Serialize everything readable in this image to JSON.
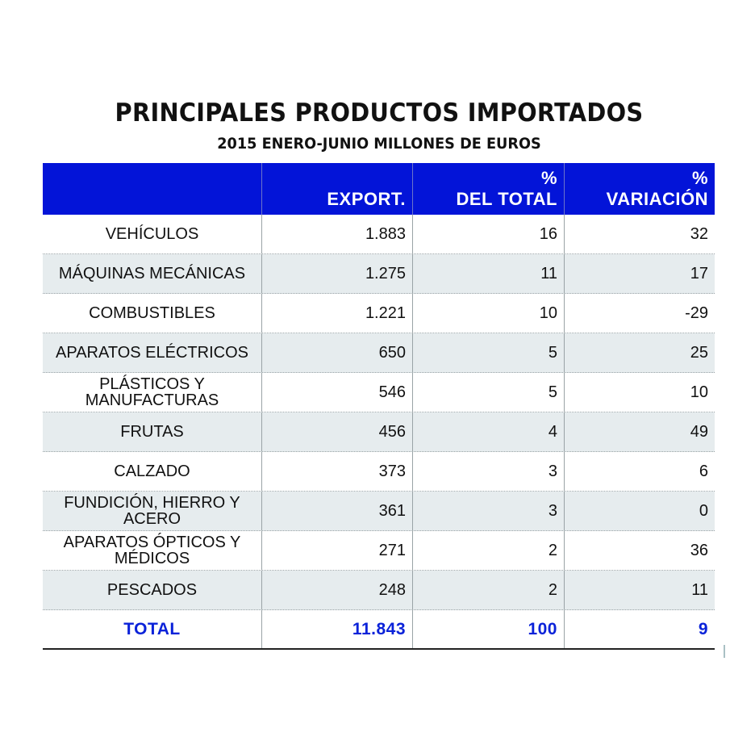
{
  "header": {
    "title": "PRINCIPALES PRODUCTOS IMPORTADOS",
    "subtitle": "2015 ENERO-JUNIO MILLONES DE EUROS"
  },
  "table": {
    "columns": [
      {
        "line1": "",
        "line2": ""
      },
      {
        "line1": "",
        "line2": "EXPORT."
      },
      {
        "line1": "%",
        "line2": "DEL TOTAL"
      },
      {
        "line1": "%",
        "line2": "VARIACIÓN"
      }
    ],
    "rows": [
      {
        "product": "VEHÍCULOS",
        "export": "1.883",
        "pct_total": "16",
        "variation": "32"
      },
      {
        "product": "MÁQUINAS MECÁNICAS",
        "export": "1.275",
        "pct_total": "11",
        "variation": "17"
      },
      {
        "product": "COMBUSTIBLES",
        "export": "1.221",
        "pct_total": "10",
        "variation": "-29"
      },
      {
        "product": "APARATOS ELÉCTRICOS",
        "export": "650",
        "pct_total": "5",
        "variation": "25"
      },
      {
        "product": "PLÁSTICOS Y MANUFACTURAS",
        "export": "546",
        "pct_total": "5",
        "variation": "10"
      },
      {
        "product": "FRUTAS",
        "export": "456",
        "pct_total": "4",
        "variation": "49"
      },
      {
        "product": "CALZADO",
        "export": "373",
        "pct_total": "3",
        "variation": "6"
      },
      {
        "product": "FUNDICIÓN, HIERRO Y ACERO",
        "export": "361",
        "pct_total": "3",
        "variation": "0"
      },
      {
        "product": "APARATOS ÓPTICOS Y MÉDICOS",
        "export": "271",
        "pct_total": "2",
        "variation": "36"
      },
      {
        "product": "PESCADOS",
        "export": "248",
        "pct_total": "2",
        "variation": "11"
      }
    ],
    "total": {
      "product": "TOTAL",
      "export": "11.843",
      "pct_total": "100",
      "variation": "9"
    }
  },
  "colors": {
    "header_bg": "#0314d8",
    "header_text": "#ffffff",
    "shade_row": "#e6ecee",
    "total_text": "#0a22d9"
  },
  "chart_data": {
    "type": "table",
    "title": "PRINCIPALES PRODUCTOS IMPORTADOS",
    "subtitle": "2015 ENERO-JUNIO MILLONES DE EUROS",
    "columns": [
      "",
      "EXPORT.",
      "% DEL TOTAL",
      "% VARIACIÓN"
    ],
    "categories": [
      "VEHÍCULOS",
      "MÁQUINAS MECÁNICAS",
      "COMBUSTIBLES",
      "APARATOS ELÉCTRICOS",
      "PLÁSTICOS Y MANUFACTURAS",
      "FRUTAS",
      "CALZADO",
      "FUNDICIÓN, HIERRO Y ACERO",
      "APARATOS ÓPTICOS Y MÉDICOS",
      "PESCADOS"
    ],
    "series": [
      {
        "name": "EXPORT.",
        "values": [
          1883,
          1275,
          1221,
          650,
          546,
          456,
          373,
          361,
          271,
          248
        ]
      },
      {
        "name": "% DEL TOTAL",
        "values": [
          16,
          11,
          10,
          5,
          5,
          4,
          3,
          3,
          2,
          2
        ]
      },
      {
        "name": "% VARIACIÓN",
        "values": [
          32,
          17,
          -29,
          25,
          10,
          49,
          6,
          0,
          36,
          11
        ]
      }
    ],
    "total": {
      "EXPORT.": 11843,
      "% DEL TOTAL": 100,
      "% VARIACIÓN": 9
    }
  }
}
